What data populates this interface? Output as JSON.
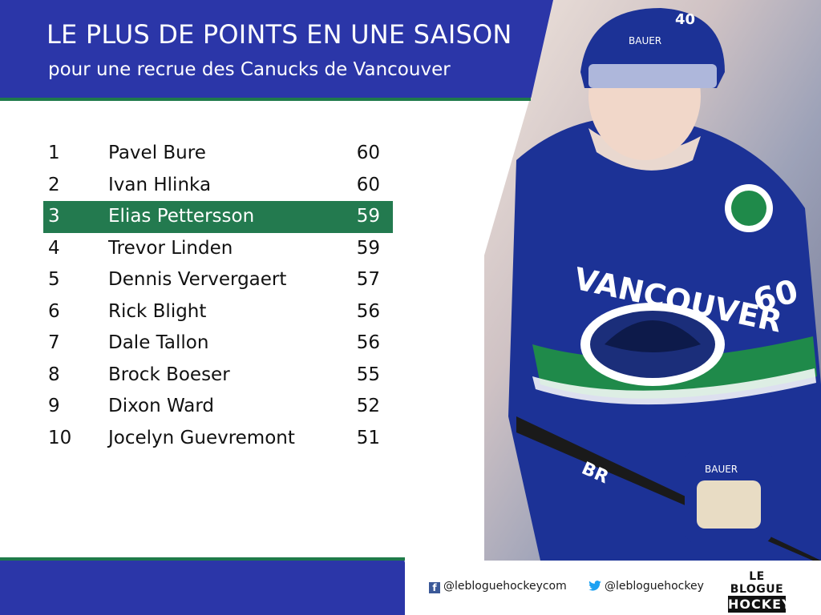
{
  "header": {
    "title": "LE PLUS DE POINTS EN UNE SAISON",
    "subtitle": "pour une recrue des Canucks de Vancouver"
  },
  "rankings": [
    {
      "rank": "1",
      "name": "Pavel Bure",
      "points": "60"
    },
    {
      "rank": "2",
      "name": "Ivan Hlinka",
      "points": "60"
    },
    {
      "rank": "3",
      "name": "Elias Pettersson",
      "points": "59"
    },
    {
      "rank": "4",
      "name": "Trevor Linden",
      "points": "59"
    },
    {
      "rank": "5",
      "name": "Dennis Ververgaert",
      "points": "57"
    },
    {
      "rank": "6",
      "name": "Rick Blight",
      "points": "56"
    },
    {
      "rank": "7",
      "name": "Dale Tallon",
      "points": "56"
    },
    {
      "rank": "8",
      "name": "Brock Boeser",
      "points": "55"
    },
    {
      "rank": "9",
      "name": "Dixon Ward",
      "points": "52"
    },
    {
      "rank": "10",
      "name": "Jocelyn Guevremont",
      "points": "51"
    }
  ],
  "photo": {
    "jersey_text": "VANCOUVER",
    "jersey_number": "60",
    "helmet_number": "40",
    "helmet_brand": "BAUER",
    "glove_brand": "BAUER",
    "stick_brand": "BR"
  },
  "footer": {
    "facebook": "@lebloguehockeycom",
    "twitter": "@lebloguehockey",
    "logo_top": "LE BLOGUE",
    "logo_bottom": "HOCKEY"
  },
  "colors": {
    "header_blue": "#2b36a8",
    "accent_green": "#237a4f",
    "jersey_blue": "#1b2e7a"
  },
  "icons": [
    "facebook-icon",
    "twitter-icon"
  ]
}
